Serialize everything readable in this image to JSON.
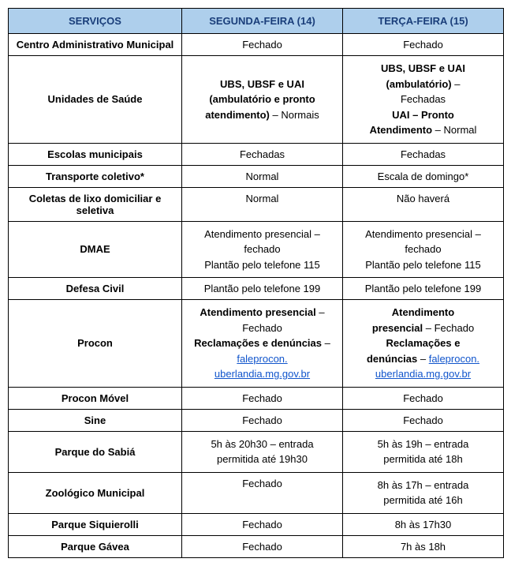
{
  "header": {
    "col0": "SERVIÇOS",
    "col1": "SEGUNDA-FEIRA (14)",
    "col2": "TERÇA-FEIRA (15)"
  },
  "rows": [
    {
      "service": "Centro Administrativo Municipal",
      "mon": "Fechado",
      "tue": "Fechado"
    },
    {
      "service": "Unidades de Saúde",
      "mon_b1": "UBS, UBSF e UAI",
      "mon_b2": "(ambulatório e pronto",
      "mon_b3": "atendimento)",
      "mon_n1": " – Normais",
      "tue_b1": "UBS, UBSF e UAI",
      "tue_b2": "(ambulatório)",
      "tue_n1": " –",
      "tue_n2": "Fechadas",
      "tue_b3": "UAI – Pronto",
      "tue_b4": "Atendimento",
      "tue_n3": " – Normal"
    },
    {
      "service": "Escolas municipais",
      "mon": "Fechadas",
      "tue": "Fechadas"
    },
    {
      "service": "Transporte coletivo*",
      "mon": "Normal",
      "tue": "Escala de domingo*"
    },
    {
      "service": "Coletas de lixo domiciliar e seletiva",
      "mon": "Normal",
      "tue": "Não haverá"
    },
    {
      "service": "DMAE",
      "mon_l1": "Atendimento presencial –",
      "mon_l2": "fechado",
      "mon_l3": "Plantão pelo telefone 115",
      "tue_l1": "Atendimento presencial –",
      "tue_l2": "fechado",
      "tue_l3": "Plantão pelo telefone 115"
    },
    {
      "service": "Defesa Civil",
      "mon": "Plantão pelo telefone 199",
      "tue": "Plantão pelo telefone 199"
    },
    {
      "service": "Procon",
      "mon_b1": "Atendimento presencial",
      "mon_n1": " –",
      "mon_n2": "Fechado",
      "mon_b2": "Reclamações e denúncias",
      "mon_n3": " –",
      "mon_link1": "faleprocon.",
      "mon_link2": "uberlandia.mg.gov.br",
      "tue_b1": "Atendimento",
      "tue_b2": "presencial",
      "tue_n1": " – Fechado",
      "tue_b3": "Reclamações e",
      "tue_b4": "denúncias",
      "tue_n2": " – ",
      "tue_link1": "faleprocon.",
      "tue_link2": "uberlandia.mg.gov.br"
    },
    {
      "service": "Procon Móvel",
      "mon": "Fechado",
      "tue": "Fechado"
    },
    {
      "service": "Sine",
      "mon": "Fechado",
      "tue": "Fechado"
    },
    {
      "service": "Parque do Sabiá",
      "mon_l1": "5h às 20h30 – entrada",
      "mon_l2": "permitida até 19h30",
      "tue_l1": "5h às 19h – entrada",
      "tue_l2": "permitida até 18h"
    },
    {
      "service": "Zoológico Municipal",
      "mon": "Fechado",
      "tue_l1": "8h às 17h – entrada",
      "tue_l2": "permitida até 16h"
    },
    {
      "service": "Parque Siquierolli",
      "mon": "Fechado",
      "tue": "8h às 17h30"
    },
    {
      "service": "Parque Gávea",
      "mon": "Fechado",
      "tue": "7h às 18h"
    }
  ]
}
